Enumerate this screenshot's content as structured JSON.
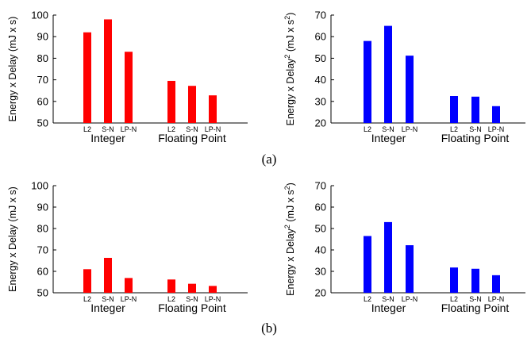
{
  "panel_labels": [
    "(a)",
    "(b)"
  ],
  "colors": {
    "red": "#ff0000",
    "blue": "#0000ff"
  },
  "chart_data": [
    {
      "type": "bar",
      "ylabel": "Energy x Delay (mJ x s)",
      "ylim": [
        50,
        100
      ],
      "yticks": [
        50,
        60,
        70,
        80,
        90,
        100
      ],
      "groups": [
        "Integer",
        "Floating Point"
      ],
      "categories": [
        "L2",
        "S-N",
        "LP-N",
        "L2",
        "S-N",
        "LP-N"
      ],
      "values": [
        92,
        98,
        83,
        69.5,
        67.2,
        62.8
      ],
      "color": "#ff0000",
      "grid": false
    },
    {
      "type": "bar",
      "ylabel": "Energy x Delay",
      "ylabel_sup": "2",
      "ylabel_tail": " (mJ x s",
      "ylabel_sup2": "2",
      "ylabel_end": ")",
      "ylim": [
        20,
        70
      ],
      "yticks": [
        20,
        30,
        40,
        50,
        60,
        70
      ],
      "groups": [
        "Integer",
        "Floating Point"
      ],
      "categories": [
        "L2",
        "S-N",
        "LP-N",
        "L2",
        "S-N",
        "LP-N"
      ],
      "values": [
        58,
        65,
        51.2,
        32.5,
        32.2,
        27.8
      ],
      "color": "#0000ff",
      "grid": false
    },
    {
      "type": "bar",
      "ylabel": "Energy x Delay (mJ x s)",
      "ylim": [
        50,
        100
      ],
      "yticks": [
        50,
        60,
        70,
        80,
        90,
        100
      ],
      "groups": [
        "Integer",
        "Floating Point"
      ],
      "categories": [
        "L2",
        "S-N",
        "LP-N",
        "L2",
        "S-N",
        "LP-N"
      ],
      "values": [
        61,
        66.3,
        56.9,
        56.2,
        54.2,
        53.2
      ],
      "color": "#ff0000",
      "grid": false
    },
    {
      "type": "bar",
      "ylabel": "Energy x Delay",
      "ylabel_sup": "2",
      "ylabel_tail": " (mJ x s",
      "ylabel_sup2": "2",
      "ylabel_end": ")",
      "ylim": [
        20,
        70
      ],
      "yticks": [
        20,
        30,
        40,
        50,
        60,
        70
      ],
      "groups": [
        "Integer",
        "Floating Point"
      ],
      "categories": [
        "L2",
        "S-N",
        "LP-N",
        "L2",
        "S-N",
        "LP-N"
      ],
      "values": [
        46.5,
        53,
        42.2,
        31.8,
        31.2,
        28.2
      ],
      "color": "#0000ff",
      "grid": false
    }
  ]
}
